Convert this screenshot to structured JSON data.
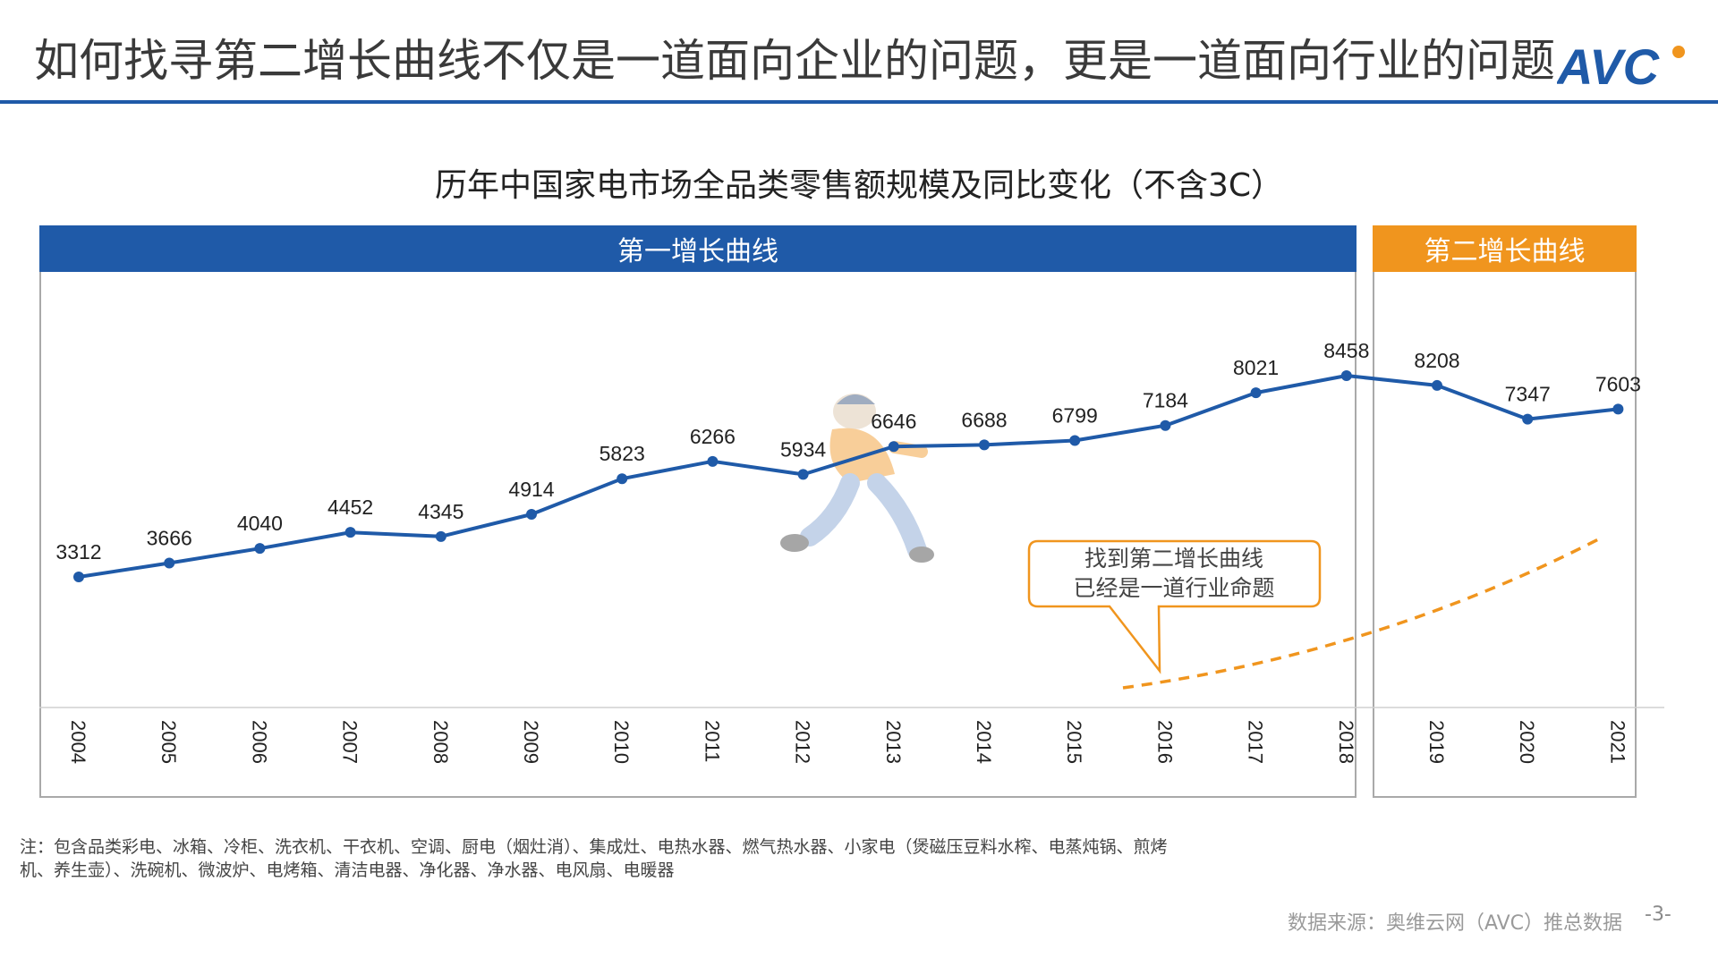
{
  "page": {
    "title": "如何找寻第二增长曲线不仅是一道面向企业的问题，更是一道面向行业的问题",
    "logo_text": "AVC",
    "page_number": "-3-"
  },
  "chart_data": {
    "type": "line",
    "title": "历年中国家电市场全品类零售额规模及同比变化（不含3C）",
    "categories": [
      "2004",
      "2005",
      "2006",
      "2007",
      "2008",
      "2009",
      "2010",
      "2011",
      "2012",
      "2013",
      "2014",
      "2015",
      "2016",
      "2017",
      "2018",
      "2019",
      "2020",
      "2021"
    ],
    "series": [
      {
        "values": [
          3312,
          3666,
          4040,
          4452,
          4345,
          4914,
          5823,
          6266,
          5934,
          6646,
          6688,
          6799,
          7184,
          8021,
          8458,
          8208,
          7347,
          7603
        ]
      }
    ],
    "segments": [
      {
        "label": "第一增长曲线",
        "from": "2004",
        "to": "2018",
        "color": "#1f5aa8"
      },
      {
        "label": "第二增长曲线",
        "from": "2019",
        "to": "2021",
        "color": "#f0951e"
      }
    ],
    "callout": "找到第二增长曲线已经是一道行业命题",
    "line_color": "#1f5aa8",
    "accent_color": "#f0951e",
    "grid": false
  },
  "footer": {
    "note": "注：包含品类彩电、冰箱、冷柜、洗衣机、干衣机、空调、厨电（烟灶消）、集成灶、电热水器、燃气热水器、小家电（煲磁压豆料水榨、电蒸炖锅、煎烤机、养生壶）、洗碗机、微波炉、电烤箱、清洁电器、净化器、净水器、电风扇、电暖器",
    "source": "数据来源：奥维云网（AVC）推总数据"
  }
}
